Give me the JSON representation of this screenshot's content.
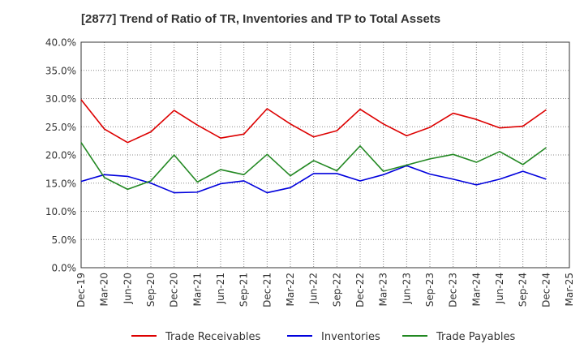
{
  "chart_data": {
    "type": "line",
    "title": "[2877]  Trend of Ratio of TR, Inventories and TP to Total Assets",
    "xlabel": "",
    "ylabel": "",
    "categories": [
      "Dec-19",
      "Mar-20",
      "Jun-20",
      "Sep-20",
      "Dec-20",
      "Mar-21",
      "Jun-21",
      "Sep-21",
      "Dec-21",
      "Mar-22",
      "Jun-22",
      "Sep-22",
      "Dec-22",
      "Mar-23",
      "Jun-23",
      "Sep-23",
      "Dec-23",
      "Mar-24",
      "Jun-24",
      "Sep-24",
      "Dec-24",
      "Mar-25"
    ],
    "y_tick_labels": [
      "0.0%",
      "5.0%",
      "10.0%",
      "15.0%",
      "20.0%",
      "25.0%",
      "30.0%",
      "35.0%",
      "40.0%"
    ],
    "ylim": [
      0,
      40
    ],
    "grid": true,
    "legend_position": "bottom",
    "series": [
      {
        "name": "Trade Receivables",
        "color": "#dd0000",
        "values": [
          29.8,
          24.6,
          22.2,
          24.1,
          27.9,
          25.3,
          23.0,
          23.7,
          28.2,
          25.5,
          23.2,
          24.3,
          28.1,
          25.5,
          23.4,
          24.9,
          27.4,
          26.3,
          24.8,
          25.1,
          28.0,
          null
        ]
      },
      {
        "name": "Inventories",
        "color": "#0000dd",
        "values": [
          15.3,
          16.5,
          16.2,
          15.0,
          13.3,
          13.4,
          14.9,
          15.4,
          13.3,
          14.2,
          16.7,
          16.7,
          15.4,
          16.5,
          18.1,
          16.6,
          15.7,
          14.7,
          15.7,
          17.1,
          15.7,
          null
        ]
      },
      {
        "name": "Trade Payables",
        "color": "#228822",
        "values": [
          22.2,
          16.0,
          13.9,
          15.4,
          20.0,
          15.2,
          17.4,
          16.5,
          20.1,
          16.3,
          19.0,
          17.2,
          21.6,
          17.1,
          18.2,
          19.3,
          20.1,
          18.7,
          20.6,
          18.3,
          21.3,
          null
        ]
      }
    ]
  }
}
